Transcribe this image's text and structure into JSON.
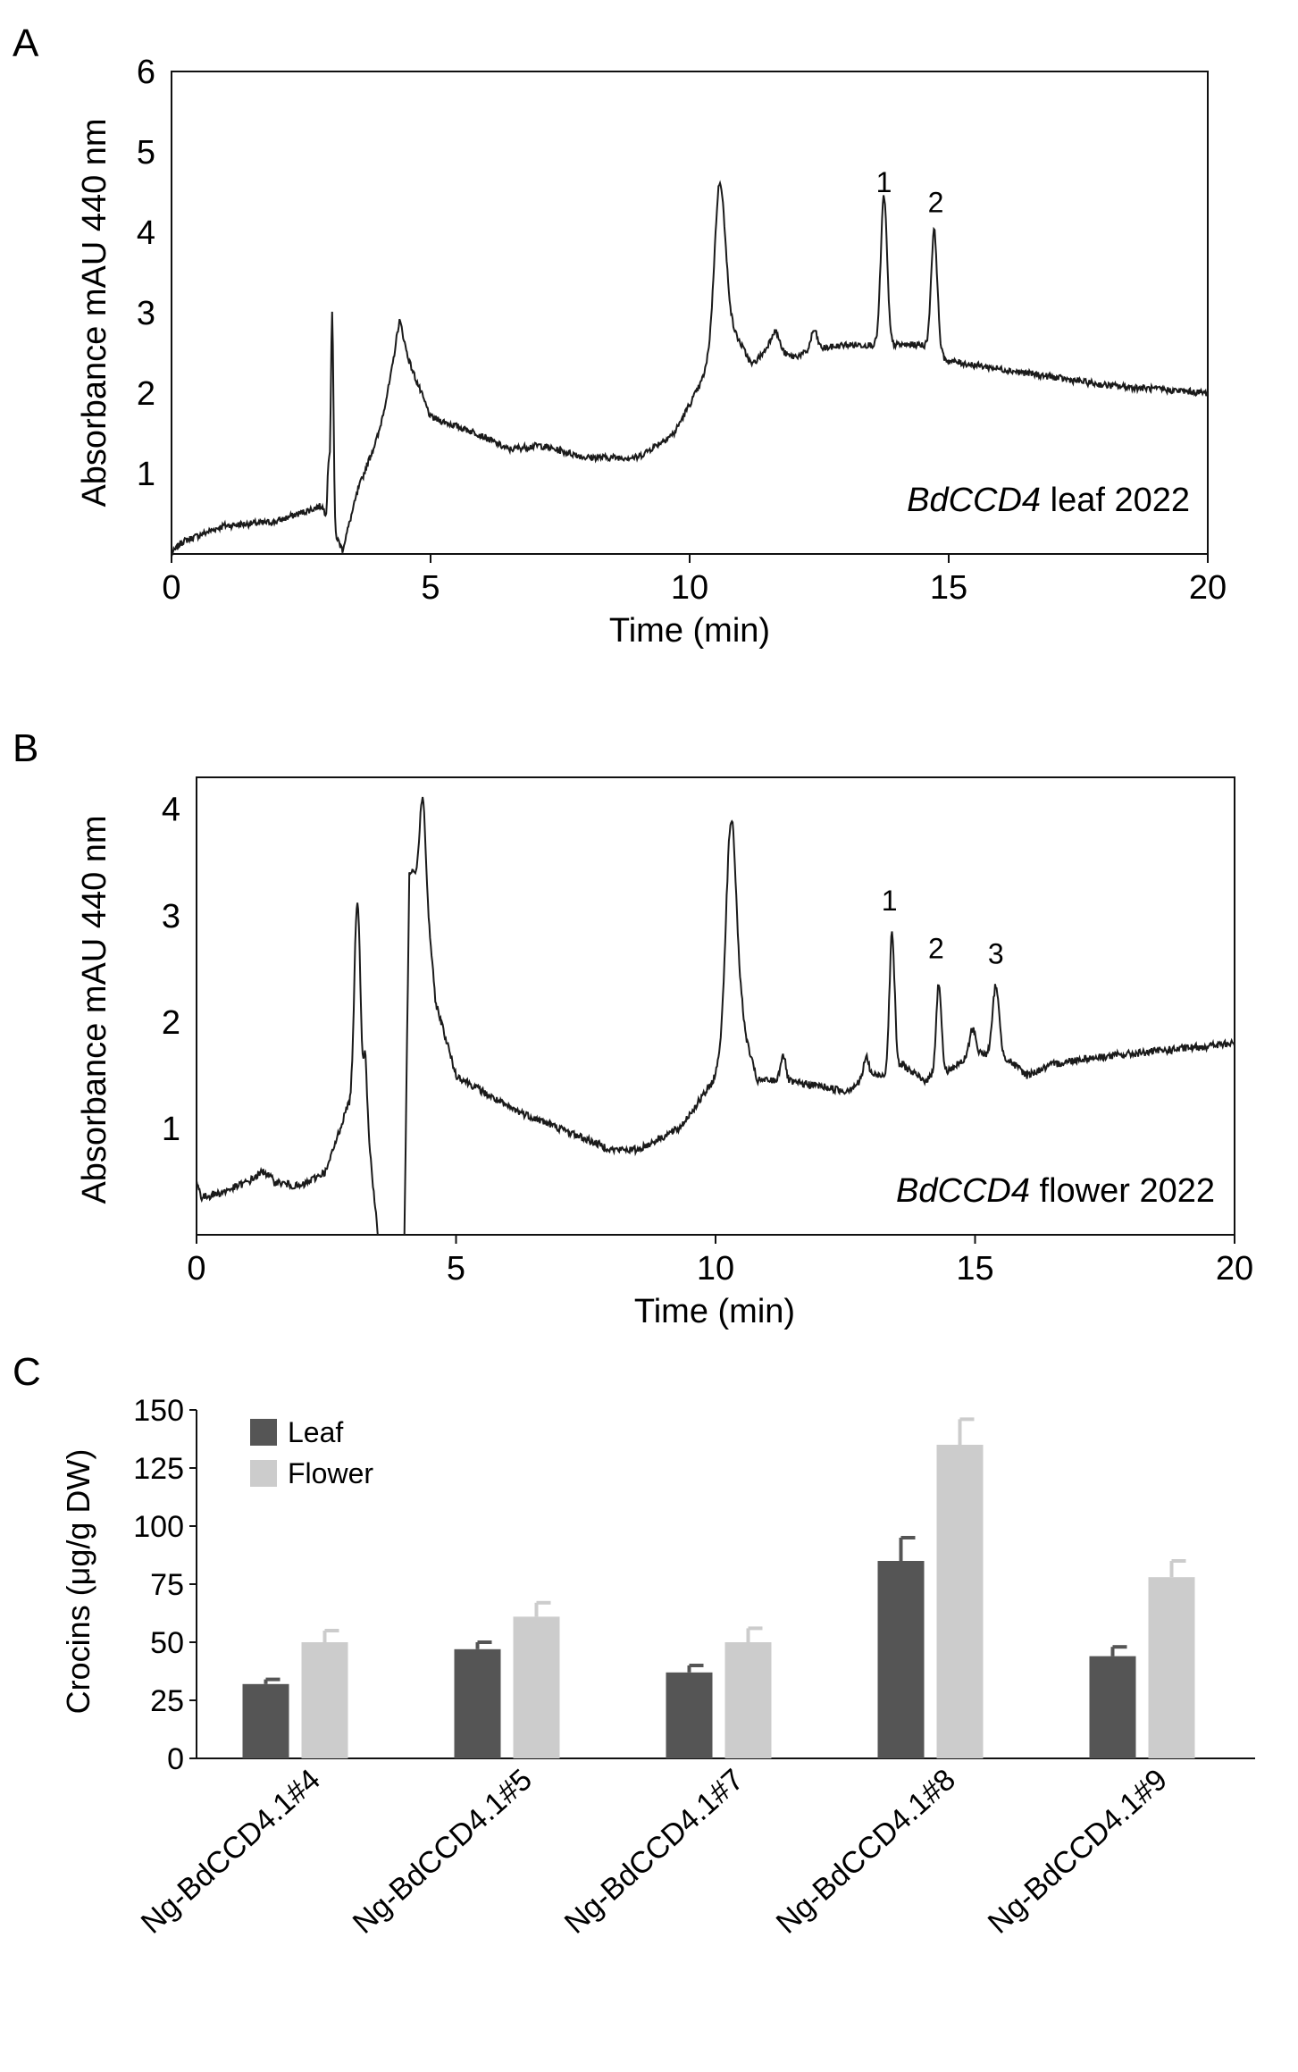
{
  "colors": {
    "line": "#1a1a1a",
    "leaf": "#555555",
    "flower": "#cccccc",
    "axis": "#111111"
  },
  "chart_data": [
    {
      "panel": "A",
      "type": "line",
      "xlabel": "Time (min)",
      "ylabel": "Absorbance mAU 440 nm",
      "xlim": [
        0,
        20
      ],
      "ylim": [
        0,
        6
      ],
      "xticks": [
        "0",
        "5",
        "10",
        "15",
        "20"
      ],
      "yticks": [
        "1",
        "2",
        "3",
        "4",
        "5",
        "6"
      ],
      "annotation_italic": "BdCCD4",
      "annotation_rest": " leaf 2022",
      "peak_labels": [
        {
          "text": "1",
          "x": 13.75,
          "y": 4.5
        },
        {
          "text": "2",
          "x": 14.75,
          "y": 4.25
        }
      ],
      "baseline": [
        [
          0,
          0
        ],
        [
          0.2,
          0.15
        ],
        [
          1,
          0.35
        ],
        [
          2,
          0.4
        ],
        [
          2.9,
          0.6
        ],
        [
          3.3,
          0.05
        ],
        [
          3.6,
          0.8
        ],
        [
          4.0,
          1.5
        ],
        [
          4.4,
          2.7
        ],
        [
          5,
          1.7
        ],
        [
          5.9,
          1.5
        ],
        [
          6.5,
          1.3
        ],
        [
          7.1,
          1.35
        ],
        [
          8,
          1.2
        ],
        [
          9,
          1.2
        ],
        [
          9.7,
          1.5
        ],
        [
          10.2,
          2.1
        ],
        [
          10.45,
          2.5
        ],
        [
          10.75,
          2.9
        ],
        [
          11.2,
          2.35
        ],
        [
          11.5,
          2.55
        ],
        [
          12,
          2.45
        ],
        [
          12.5,
          2.55
        ],
        [
          13.0,
          2.6
        ],
        [
          13.5,
          2.6
        ],
        [
          14.1,
          2.6
        ],
        [
          14.5,
          2.6
        ],
        [
          15.0,
          2.4
        ],
        [
          16,
          2.3
        ],
        [
          17,
          2.2
        ],
        [
          18,
          2.1
        ],
        [
          19,
          2.05
        ],
        [
          20,
          2.0
        ]
      ],
      "peaks": [
        [
          3.1,
          2.7,
          0.025
        ],
        [
          3.03,
          0.7,
          0.02
        ],
        [
          4.4,
          0.2,
          0.08
        ],
        [
          10.58,
          1.95,
          0.1
        ],
        [
          11.65,
          0.25,
          0.08
        ],
        [
          12.4,
          0.25,
          0.06
        ],
        [
          13.75,
          1.85,
          0.06
        ],
        [
          14.72,
          1.5,
          0.06
        ]
      ],
      "noise": 0.04
    },
    {
      "panel": "B",
      "type": "line",
      "xlabel": "Time (min)",
      "ylabel": "Absorbance mAU 440 nm",
      "xlim": [
        0,
        20
      ],
      "ylim": [
        0,
        4.3
      ],
      "xticks": [
        "0",
        "5",
        "10",
        "15",
        "20"
      ],
      "yticks": [
        "1",
        "2",
        "3",
        "4"
      ],
      "annotation_italic": "BdCCD4",
      "annotation_rest": " flower 2022",
      "peak_labels": [
        {
          "text": "1",
          "x": 13.35,
          "y": 3.05
        },
        {
          "text": "2",
          "x": 14.25,
          "y": 2.6
        },
        {
          "text": "3",
          "x": 15.4,
          "y": 2.55
        }
      ],
      "baseline": [
        [
          0,
          0.5
        ],
        [
          0.1,
          0.35
        ],
        [
          0.5,
          0.4
        ],
        [
          1.0,
          0.5
        ],
        [
          1.3,
          0.6
        ],
        [
          1.5,
          0.5
        ],
        [
          2.0,
          0.45
        ],
        [
          2.5,
          0.6
        ],
        [
          2.9,
          1.2
        ],
        [
          3.3,
          1.0
        ],
        [
          3.55,
          -0.3
        ],
        [
          3.8,
          -0.3
        ],
        [
          4.0,
          -0.2
        ],
        [
          4.1,
          3.4
        ],
        [
          4.4,
          3.4
        ],
        [
          4.6,
          2.2
        ],
        [
          5,
          1.5
        ],
        [
          6,
          1.2
        ],
        [
          7,
          1.0
        ],
        [
          8,
          0.8
        ],
        [
          8.5,
          0.8
        ],
        [
          9.3,
          1.0
        ],
        [
          9.9,
          1.4
        ],
        [
          10.2,
          1.7
        ],
        [
          10.5,
          2.0
        ],
        [
          10.8,
          1.45
        ],
        [
          11.2,
          1.45
        ],
        [
          12,
          1.4
        ],
        [
          12.5,
          1.35
        ],
        [
          13.0,
          1.5
        ],
        [
          13.3,
          1.5
        ],
        [
          13.6,
          1.6
        ],
        [
          14,
          1.45
        ],
        [
          14.5,
          1.55
        ],
        [
          15,
          1.7
        ],
        [
          15.5,
          1.7
        ],
        [
          16,
          1.5
        ],
        [
          16.5,
          1.6
        ],
        [
          17,
          1.65
        ],
        [
          18,
          1.7
        ],
        [
          19,
          1.75
        ],
        [
          20,
          1.8
        ]
      ],
      "peaks": [
        [
          3.1,
          2.05,
          0.06
        ],
        [
          3.25,
          0.6,
          0.03
        ],
        [
          10.3,
          2.1,
          0.1
        ],
        [
          11.3,
          0.25,
          0.05
        ],
        [
          12.9,
          0.2,
          0.05
        ],
        [
          13.4,
          1.3,
          0.05
        ],
        [
          14.3,
          0.85,
          0.05
        ],
        [
          14.95,
          0.25,
          0.06
        ],
        [
          15.4,
          0.65,
          0.06
        ],
        [
          4.35,
          0.7,
          0.05
        ]
      ],
      "noise": 0.035
    },
    {
      "panel": "C",
      "type": "bar",
      "ylabel": "Crocins (μg/g DW)",
      "ylim": [
        0,
        150
      ],
      "yticks": [
        "0",
        "25",
        "50",
        "75",
        "100",
        "125",
        "150"
      ],
      "categories": [
        "Ng-BdCCD4.1#4",
        "Ng-BdCCD4.1#5",
        "Ng-BdCCD4.1#7",
        "Ng-BdCCD4.1#8",
        "Ng-BdCCD4.1#9"
      ],
      "series": [
        {
          "name": "Leaf",
          "values": [
            32,
            47,
            37,
            85,
            44
          ],
          "errors": [
            2,
            3,
            3,
            10,
            4
          ]
        },
        {
          "name": "Flower",
          "values": [
            50,
            61,
            50,
            135,
            78
          ],
          "errors": [
            5,
            6,
            6,
            11,
            7
          ]
        }
      ],
      "legend_position": "top-left"
    }
  ],
  "panel_labels": {
    "a": "A",
    "b": "B",
    "c": "C"
  }
}
